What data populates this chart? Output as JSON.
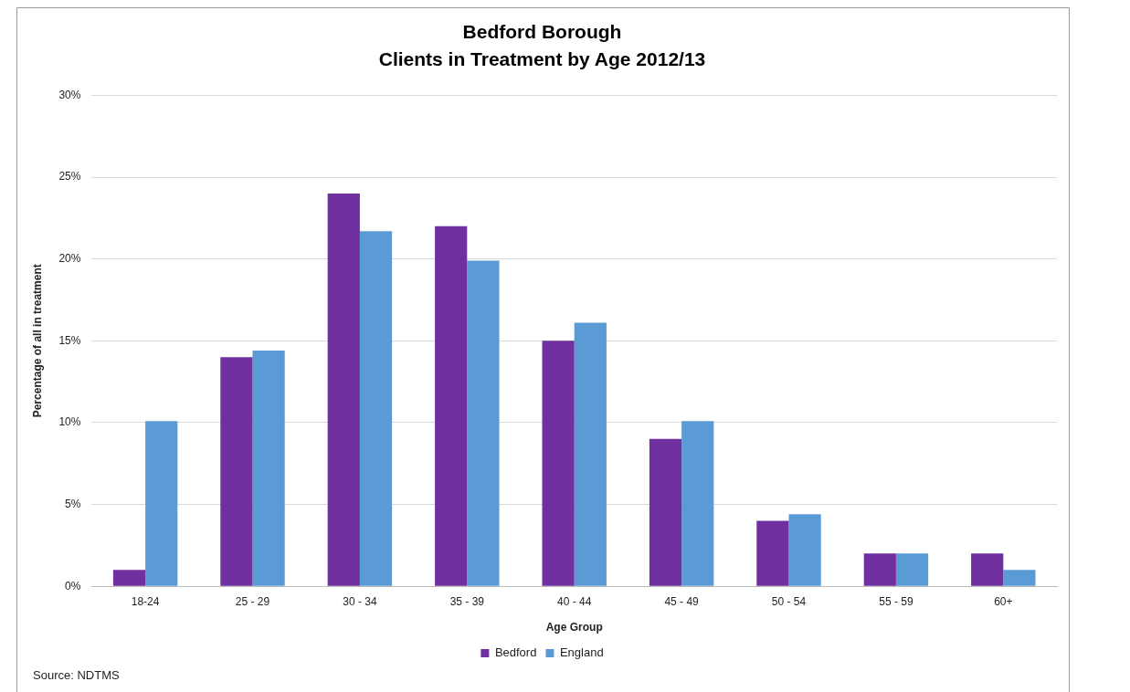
{
  "chart_data": {
    "type": "bar",
    "title": "Bedford Borough",
    "subtitle": "Clients in Treatment by Age 2012/13",
    "xlabel": "Age Group",
    "ylabel": "Percentage of all in treatment",
    "categories": [
      "18-24",
      "25 - 29",
      "30 - 34",
      "35 - 39",
      "40 - 44",
      "45 - 49",
      "50 - 54",
      "55 - 59",
      "60+"
    ],
    "series": [
      {
        "name": "Bedford",
        "color": "#7030a0",
        "values": [
          1,
          14,
          24,
          22,
          15,
          9,
          4,
          2,
          2
        ]
      },
      {
        "name": "England",
        "color": "#5b9bd5",
        "values": [
          10.1,
          14.4,
          21.7,
          19.9,
          16.1,
          10.1,
          4.4,
          2,
          1
        ]
      }
    ],
    "ylim": [
      0,
      30
    ],
    "yticks": [
      {
        "value": 0,
        "label": "0%"
      },
      {
        "value": 5,
        "label": "5%"
      },
      {
        "value": 10,
        "label": "10%"
      },
      {
        "value": 15,
        "label": "15%"
      },
      {
        "value": 20,
        "label": "20%"
      },
      {
        "value": 25,
        "label": "25%"
      },
      {
        "value": 30,
        "label": "30%"
      }
    ],
    "grid": "y",
    "legend": "bottom",
    "annotations": [
      "Source: NDTMS"
    ]
  }
}
